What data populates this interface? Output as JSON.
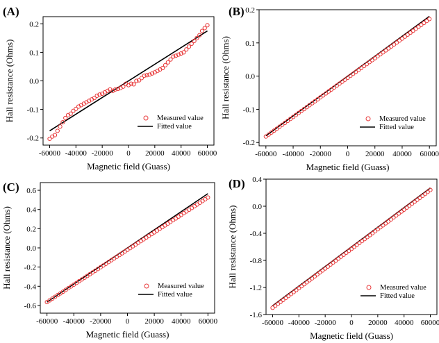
{
  "chart_data": [
    {
      "panel": "(A)",
      "type": "scatter",
      "xlabel": "Magnetic field (Guass)",
      "ylabel": "Hall resistance (Ohms)",
      "xlim": [
        -65000,
        65000
      ],
      "ylim": [
        -0.225,
        0.225
      ],
      "xticks": [
        "-60000",
        "-40000",
        "-20000",
        "0",
        "20000",
        "40000",
        "60000"
      ],
      "xtick_values": [
        -60000,
        -40000,
        -20000,
        0,
        20000,
        40000,
        60000
      ],
      "yticks": [
        "-0.2",
        "-0.1",
        "0.0",
        "0.1",
        "0.2"
      ],
      "ytick_values": [
        -0.2,
        -0.1,
        0.0,
        0.1,
        0.2
      ],
      "legend": [
        "Measured value",
        "Fitted value"
      ],
      "legend_position": "bottom-right",
      "fit": {
        "x": [
          -60000,
          60000
        ],
        "y": [
          -0.175,
          0.175
        ]
      },
      "series": [
        {
          "name": "Measured value",
          "x": [
            -60000,
            -58000,
            -56000,
            -54000,
            -52000,
            -50000,
            -48000,
            -46000,
            -44000,
            -42000,
            -40000,
            -38000,
            -36000,
            -34000,
            -32000,
            -30000,
            -28000,
            -26000,
            -24000,
            -22000,
            -20000,
            -18000,
            -16000,
            -14000,
            -12000,
            -10000,
            -8000,
            -6000,
            -4000,
            -2000,
            0,
            2000,
            4000,
            6000,
            8000,
            10000,
            12000,
            14000,
            16000,
            18000,
            20000,
            22000,
            24000,
            26000,
            28000,
            30000,
            32000,
            34000,
            36000,
            38000,
            40000,
            42000,
            44000,
            46000,
            48000,
            50000,
            52000,
            54000,
            56000,
            58000,
            60000
          ],
          "y": [
            -0.203,
            -0.195,
            -0.19,
            -0.175,
            -0.16,
            -0.145,
            -0.13,
            -0.12,
            -0.115,
            -0.105,
            -0.098,
            -0.09,
            -0.085,
            -0.08,
            -0.075,
            -0.07,
            -0.065,
            -0.06,
            -0.052,
            -0.048,
            -0.045,
            -0.04,
            -0.035,
            -0.03,
            -0.035,
            -0.03,
            -0.028,
            -0.025,
            -0.02,
            -0.01,
            -0.015,
            -0.01,
            -0.012,
            0.0,
            0.002,
            0.01,
            0.018,
            0.02,
            0.022,
            0.026,
            0.03,
            0.035,
            0.04,
            0.045,
            0.055,
            0.065,
            0.075,
            0.085,
            0.088,
            0.092,
            0.096,
            0.1,
            0.11,
            0.12,
            0.13,
            0.14,
            0.15,
            0.16,
            0.175,
            0.185,
            0.195
          ]
        }
      ]
    },
    {
      "panel": "(B)",
      "type": "scatter",
      "xlabel": "Magnetic field (Guass)",
      "ylabel": "Hall resistance (Ohms)",
      "xlim": [
        -65000,
        65000
      ],
      "ylim": [
        -0.21,
        0.2
      ],
      "xticks": [
        "-60000",
        "-40000",
        "-20000",
        "0",
        "20000",
        "40000",
        "60000"
      ],
      "xtick_values": [
        -60000,
        -40000,
        -20000,
        0,
        20000,
        40000,
        60000
      ],
      "yticks": [
        "-0.2",
        "-0.1",
        "0.0",
        "0.1",
        "0.2"
      ],
      "ytick_values": [
        -0.2,
        -0.1,
        0.0,
        0.1,
        0.2
      ],
      "legend": [
        "Measured value",
        "Fitted value"
      ],
      "legend_position": "bottom-right",
      "fit": {
        "x": [
          -60000,
          60000
        ],
        "y": [
          -0.18,
          0.18
        ]
      },
      "series": [
        {
          "name": "Measured value",
          "x_start": -60000,
          "x_end": 60000,
          "x_step": 2000,
          "slope": 2.95e-06,
          "intercept": -0.005
        }
      ]
    },
    {
      "panel": "(C)",
      "type": "scatter",
      "xlabel": "Magnetic field (Guass)",
      "ylabel": "Hall resistance (Ohms)",
      "xlim": [
        -65000,
        65000
      ],
      "ylim": [
        -0.68,
        0.68
      ],
      "xticks": [
        "-60000",
        "-40000",
        "-20000",
        "0",
        "20000",
        "40000",
        "60000"
      ],
      "xtick_values": [
        -60000,
        -40000,
        -20000,
        0,
        20000,
        40000,
        60000
      ],
      "yticks": [
        "-0.6",
        "-0.4",
        "-0.2",
        "0.0",
        "0.2",
        "0.4",
        "0.6"
      ],
      "ytick_values": [
        -0.6,
        -0.4,
        -0.2,
        0.0,
        0.2,
        0.4,
        0.6
      ],
      "legend": [
        "Measured value",
        "Fitted value"
      ],
      "legend_position": "bottom-right",
      "fit": {
        "x": [
          -60000,
          60000
        ],
        "y": [
          -0.565,
          0.565
        ]
      },
      "series": [
        {
          "name": "Measured value",
          "x_start": -60000,
          "x_end": 60000,
          "x_step": 2000,
          "slope": 9.08e-06,
          "intercept": -0.02
        }
      ]
    },
    {
      "panel": "(D)",
      "type": "scatter",
      "xlabel": "Magnetic field (Guass)",
      "ylabel": "Hall resistance (Ohms)",
      "xlim": [
        -65000,
        65000
      ],
      "ylim": [
        -1.6,
        0.4
      ],
      "xticks": [
        "-60000",
        "-40000",
        "-20000",
        "0",
        "20000",
        "40000",
        "60000"
      ],
      "xtick_values": [
        -60000,
        -40000,
        -20000,
        0,
        20000,
        40000,
        60000
      ],
      "yticks": [
        "-1.6",
        "-1.2",
        "-0.8",
        "-0.4",
        "0.0",
        "0.4"
      ],
      "ytick_values": [
        -1.6,
        -1.2,
        -0.8,
        -0.4,
        0.0,
        0.4
      ],
      "legend": [
        "Measured value",
        "Fitted value"
      ],
      "legend_position": "bottom-right",
      "fit": {
        "x": [
          -60000,
          60000
        ],
        "y": [
          -1.47,
          0.27
        ]
      },
      "series": [
        {
          "name": "Measured value",
          "x_start": -60000,
          "x_end": 60000,
          "x_step": 2000,
          "slope": 1.45e-05,
          "intercept": -0.63
        }
      ]
    }
  ],
  "colors": {
    "measured": "#e8393a",
    "fitted": "#000000",
    "axis": "#000000"
  }
}
